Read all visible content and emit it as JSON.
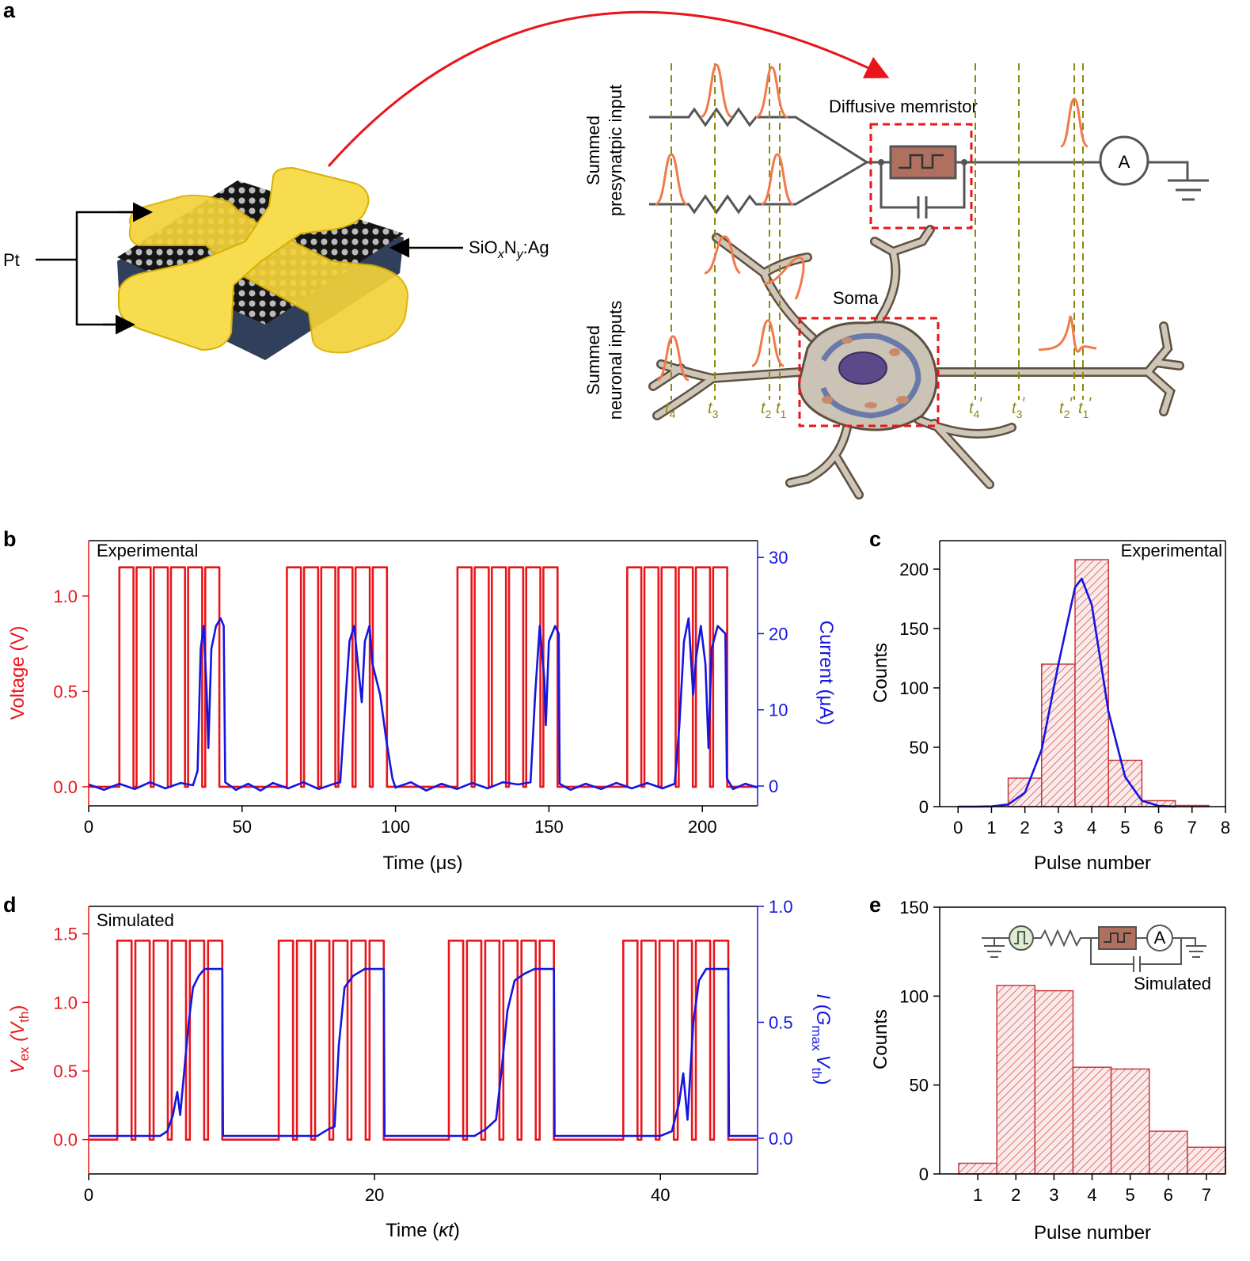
{
  "panel_labels": [
    "a",
    "b",
    "c",
    "d",
    "e"
  ],
  "diagram": {
    "pt": "Pt",
    "material": [
      "SiO",
      "x",
      "N",
      "y",
      ":Ag"
    ],
    "presynaptic": [
      "Summed",
      "presynatpic input"
    ],
    "neuronal": [
      "Summed",
      "neuronal inputs"
    ],
    "memristor": "Diffusive memristor",
    "ammeter": "A",
    "soma": "Soma",
    "times": [
      [
        "t",
        "4"
      ],
      [
        "t",
        "3"
      ],
      [
        "t",
        "2"
      ],
      [
        "t",
        "1"
      ]
    ],
    "times_out": [
      [
        "t",
        "4",
        "′"
      ],
      [
        "t",
        "3",
        "′"
      ],
      [
        "t",
        "2",
        "′"
      ],
      [
        "t",
        "1",
        "′"
      ]
    ]
  },
  "chart_data": [
    {
      "type": "line",
      "annotation": "Experimental",
      "x_label": "Time (μs)",
      "y_label": "Voltage (V)",
      "y2_label": "Current (μA)",
      "xlim": [
        0,
        218
      ],
      "xticks": [
        0,
        50,
        100,
        150,
        200
      ],
      "ylim": [
        -0.1,
        1.29
      ],
      "yticks": [
        {
          "value": 0,
          "label": "0.0"
        },
        0.5,
        {
          "value": 1,
          "label": "1.0"
        }
      ],
      "y2lim": [
        -2.6,
        32.2
      ],
      "y2ticks": [
        0,
        10,
        20,
        30
      ],
      "series": [
        {
          "color": "#e8161b",
          "x": [
            0,
            10,
            10,
            14.6,
            14.6,
            15.6,
            15.6,
            20.2,
            20.2,
            21.2,
            21.2,
            25.8,
            25.8,
            26.8,
            26.8,
            31.4,
            31.4,
            32.4,
            32.4,
            37,
            37,
            38,
            38,
            42.6,
            42.6,
            64.6,
            64.6,
            69.2,
            69.2,
            70.2,
            70.2,
            74.8,
            74.8,
            75.8,
            75.8,
            80.4,
            80.4,
            81.4,
            81.4,
            86,
            86,
            87,
            87,
            91.6,
            91.6,
            92.6,
            92.6,
            97.2,
            97.2,
            120.2,
            120.2,
            124.8,
            124.8,
            125.8,
            125.8,
            130.4,
            130.4,
            131.4,
            131.4,
            136,
            136,
            137,
            137,
            141.6,
            141.6,
            142.6,
            142.6,
            147.2,
            147.2,
            148.2,
            148.2,
            152.8,
            152.8,
            175.5,
            175.5,
            180.1,
            180.1,
            181.1,
            181.1,
            185.7,
            185.7,
            186.7,
            186.7,
            191.3,
            191.3,
            192.3,
            192.3,
            196.9,
            196.9,
            197.9,
            197.9,
            202.5,
            202.5,
            203.5,
            203.5,
            208.1,
            208.1,
            218
          ],
          "values": [
            0,
            0,
            1.15,
            1.15,
            0,
            0,
            1.15,
            1.15,
            0,
            0,
            1.15,
            1.15,
            0,
            0,
            1.15,
            1.15,
            0,
            0,
            1.15,
            1.15,
            0,
            0,
            1.15,
            1.15,
            0,
            0,
            1.15,
            1.15,
            0,
            0,
            1.15,
            1.15,
            0,
            0,
            1.15,
            1.15,
            0,
            0,
            1.15,
            1.15,
            0,
            0,
            1.15,
            1.15,
            0,
            0,
            1.15,
            1.15,
            0,
            0,
            1.15,
            1.15,
            0,
            0,
            1.15,
            1.15,
            0,
            0,
            1.15,
            1.15,
            0,
            0,
            1.15,
            1.15,
            0,
            0,
            1.15,
            1.15,
            0,
            0,
            1.15,
            1.15,
            0,
            0,
            1.15,
            1.15,
            0,
            0,
            1.15,
            1.15,
            0,
            0,
            1.15,
            1.15,
            0,
            0,
            1.15,
            1.15,
            0,
            0,
            1.15,
            1.15,
            0,
            0,
            1.15,
            1.15,
            0,
            0
          ]
        },
        {
          "color": "#1515e0",
          "axis": "y2",
          "x": [
            0,
            5,
            10,
            15,
            20,
            25,
            30,
            34,
            35.5,
            36.5,
            37.5,
            38.5,
            39,
            40,
            41.5,
            43,
            44,
            44.5,
            48,
            52,
            56,
            60,
            65,
            70,
            75,
            80,
            82,
            83.5,
            85,
            86.5,
            88,
            89,
            90,
            91.5,
            92.5,
            95,
            97,
            99,
            100,
            105,
            110,
            115,
            120,
            125,
            130,
            135,
            140,
            144,
            145.5,
            147,
            148.5,
            149,
            150,
            152,
            153.2,
            153.5,
            157,
            162,
            167,
            172,
            177,
            182,
            187,
            191,
            192.5,
            194,
            195.5,
            197,
            198,
            199.5,
            201,
            202,
            203,
            205,
            207.5,
            208,
            210,
            214,
            218
          ],
          "values": [
            0.2,
            -0.5,
            0.3,
            -0.4,
            0.5,
            -0.3,
            0.4,
            0.1,
            2,
            18,
            21,
            12,
            5,
            18,
            21,
            22,
            21,
            0.5,
            -0.5,
            0.3,
            -0.6,
            0.4,
            -0.3,
            0.5,
            -0.4,
            0.3,
            0.5,
            10,
            19,
            21,
            15,
            11,
            19,
            21,
            16,
            12,
            6,
            1,
            -0.2,
            0.5,
            -0.6,
            0.3,
            -0.4,
            0.4,
            -0.3,
            0.5,
            0.2,
            0.5,
            12,
            21,
            14,
            8,
            19,
            21,
            20,
            0.3,
            -0.5,
            0.3,
            -0.4,
            0.4,
            -0.3,
            0.4,
            -0.3,
            0.3,
            8,
            19,
            22,
            12,
            17,
            21,
            16,
            5,
            18,
            21,
            20,
            1,
            -0.4,
            0.3,
            -0.2
          ]
        }
      ]
    },
    {
      "type": "histogram",
      "annotation": "Experimental",
      "x_label": "Pulse number",
      "y_label": "Counts",
      "xlim": [
        -0.55,
        8
      ],
      "xticks": [
        0,
        1,
        2,
        3,
        4,
        5,
        6,
        7,
        8
      ],
      "ylim": [
        0,
        224
      ],
      "yticks": [
        0,
        50,
        100,
        150,
        200
      ],
      "bins": [
        1.5,
        2.5,
        3.5,
        4.5,
        5.5,
        6.5,
        7.5
      ],
      "counts": [
        24,
        120,
        208,
        39,
        5,
        1
      ],
      "color": "#c8383a",
      "fit": {
        "color": "#1515e0",
        "x": [
          0,
          0.5,
          1,
          1.5,
          2,
          2.5,
          3,
          3.5,
          3.7,
          4,
          4.5,
          5,
          5.5,
          6,
          6.5
        ],
        "values": [
          0,
          0.01,
          0.17,
          1.8,
          11.8,
          47.9,
          119.7,
          184.7,
          192,
          170,
          80,
          25,
          5,
          0.7,
          0.1
        ]
      }
    },
    {
      "type": "line",
      "annotation": "Simulated",
      "x_label": [
        "Time (",
        "κt",
        ")"
      ],
      "y_label": [
        "V",
        "ex",
        " (V",
        "th",
        ")"
      ],
      "y2_label": [
        "I",
        " (",
        "G",
        "max",
        "V",
        "th",
        ")"
      ],
      "xlim": [
        0,
        46.8
      ],
      "xticks": [
        0,
        20,
        40
      ],
      "ylim": [
        -0.25,
        1.7
      ],
      "yticks": [
        {
          "value": 0,
          "label": "0.0"
        },
        0.5,
        {
          "value": 1,
          "label": "1.0"
        },
        1.5
      ],
      "y2lim": [
        -0.154,
        1
      ],
      "y2ticks": [
        {
          "value": 0,
          "label": "0.0"
        },
        0.5,
        {
          "value": 1,
          "label": "1.0"
        }
      ],
      "series": [
        {
          "color": "#e8161b",
          "x": [
            0,
            2,
            2,
            3,
            3,
            3.27,
            3.27,
            4.27,
            4.27,
            4.54,
            4.54,
            5.54,
            5.54,
            5.81,
            5.81,
            6.81,
            6.81,
            7.08,
            7.08,
            8.08,
            8.08,
            8.35,
            8.35,
            9.35,
            9.35,
            13.3,
            13.3,
            14.3,
            14.3,
            14.57,
            14.57,
            15.57,
            15.57,
            15.84,
            15.84,
            16.84,
            16.84,
            17.11,
            17.11,
            18.11,
            18.11,
            18.38,
            18.38,
            19.38,
            19.38,
            19.65,
            19.65,
            20.65,
            20.65,
            25.2,
            25.2,
            26.2,
            26.2,
            26.47,
            26.47,
            27.47,
            27.47,
            27.74,
            27.74,
            28.74,
            28.74,
            29.01,
            29.01,
            30.01,
            30.01,
            30.28,
            30.28,
            31.28,
            31.28,
            31.55,
            31.55,
            32.55,
            32.55,
            37.4,
            37.4,
            38.4,
            38.4,
            38.67,
            38.67,
            39.67,
            39.67,
            39.94,
            39.94,
            40.94,
            40.94,
            41.21,
            41.21,
            42.21,
            42.21,
            42.48,
            42.48,
            43.48,
            43.48,
            43.75,
            43.75,
            44.75,
            44.75,
            46.8
          ],
          "values": [
            0,
            0,
            1.45,
            1.45,
            0,
            0,
            1.45,
            1.45,
            0,
            0,
            1.45,
            1.45,
            0,
            0,
            1.45,
            1.45,
            0,
            0,
            1.45,
            1.45,
            0,
            0,
            1.45,
            1.45,
            0,
            0,
            1.45,
            1.45,
            0,
            0,
            1.45,
            1.45,
            0,
            0,
            1.45,
            1.45,
            0,
            0,
            1.45,
            1.45,
            0,
            0,
            1.45,
            1.45,
            0,
            0,
            1.45,
            1.45,
            0,
            0,
            1.45,
            1.45,
            0,
            0,
            1.45,
            1.45,
            0,
            0,
            1.45,
            1.45,
            0,
            0,
            1.45,
            1.45,
            0,
            0,
            1.45,
            1.45,
            0,
            0,
            1.45,
            1.45,
            0,
            0,
            1.45,
            1.45,
            0,
            0,
            1.45,
            1.45,
            0,
            0,
            1.45,
            1.45,
            0,
            0,
            1.45,
            1.45,
            0,
            0,
            1.45,
            1.45,
            0,
            0,
            1.45,
            1.45,
            0,
            0
          ]
        },
        {
          "color": "#1515e0",
          "axis": "y2",
          "x": [
            0,
            5,
            5.5,
            5.9,
            6.2,
            6.4,
            6.7,
            7,
            7.3,
            7.7,
            8.1,
            9.35,
            9.4,
            16,
            16.8,
            17.2,
            17.5,
            17.9,
            18.5,
            19.3,
            20.65,
            20.7,
            27,
            27.8,
            28.5,
            28.9,
            29.3,
            29.8,
            30.5,
            31.2,
            32.55,
            32.6,
            40,
            40.8,
            41.3,
            41.6,
            41.9,
            42.3,
            42.7,
            43.2,
            44.75,
            44.8,
            46.8
          ],
          "values": [
            0.01,
            0.01,
            0.03,
            0.1,
            0.2,
            0.1,
            0.3,
            0.5,
            0.65,
            0.7,
            0.73,
            0.73,
            0.01,
            0.01,
            0.04,
            0.05,
            0.4,
            0.65,
            0.7,
            0.73,
            0.73,
            0.01,
            0.01,
            0.04,
            0.08,
            0.3,
            0.55,
            0.68,
            0.71,
            0.73,
            0.73,
            0.01,
            0.01,
            0.03,
            0.15,
            0.28,
            0.08,
            0.5,
            0.68,
            0.73,
            0.73,
            0.01,
            0.01
          ]
        }
      ]
    },
    {
      "type": "histogram",
      "annotation": "Simulated",
      "x_label": "Pulse number",
      "y_label": "Counts",
      "inset_label": "A",
      "xlim": [
        0,
        7.5
      ],
      "xticks": [
        1,
        2,
        3,
        4,
        5,
        6,
        7
      ],
      "ylim": [
        0,
        150
      ],
      "yticks": [
        0,
        50,
        100,
        150
      ],
      "bins": [
        0.5,
        1.5,
        2.5,
        3.5,
        4.5,
        5.5,
        6.5,
        7.5
      ],
      "counts": [
        6,
        106,
        103,
        60,
        59,
        24,
        15
      ],
      "color": "#c8383a"
    }
  ]
}
